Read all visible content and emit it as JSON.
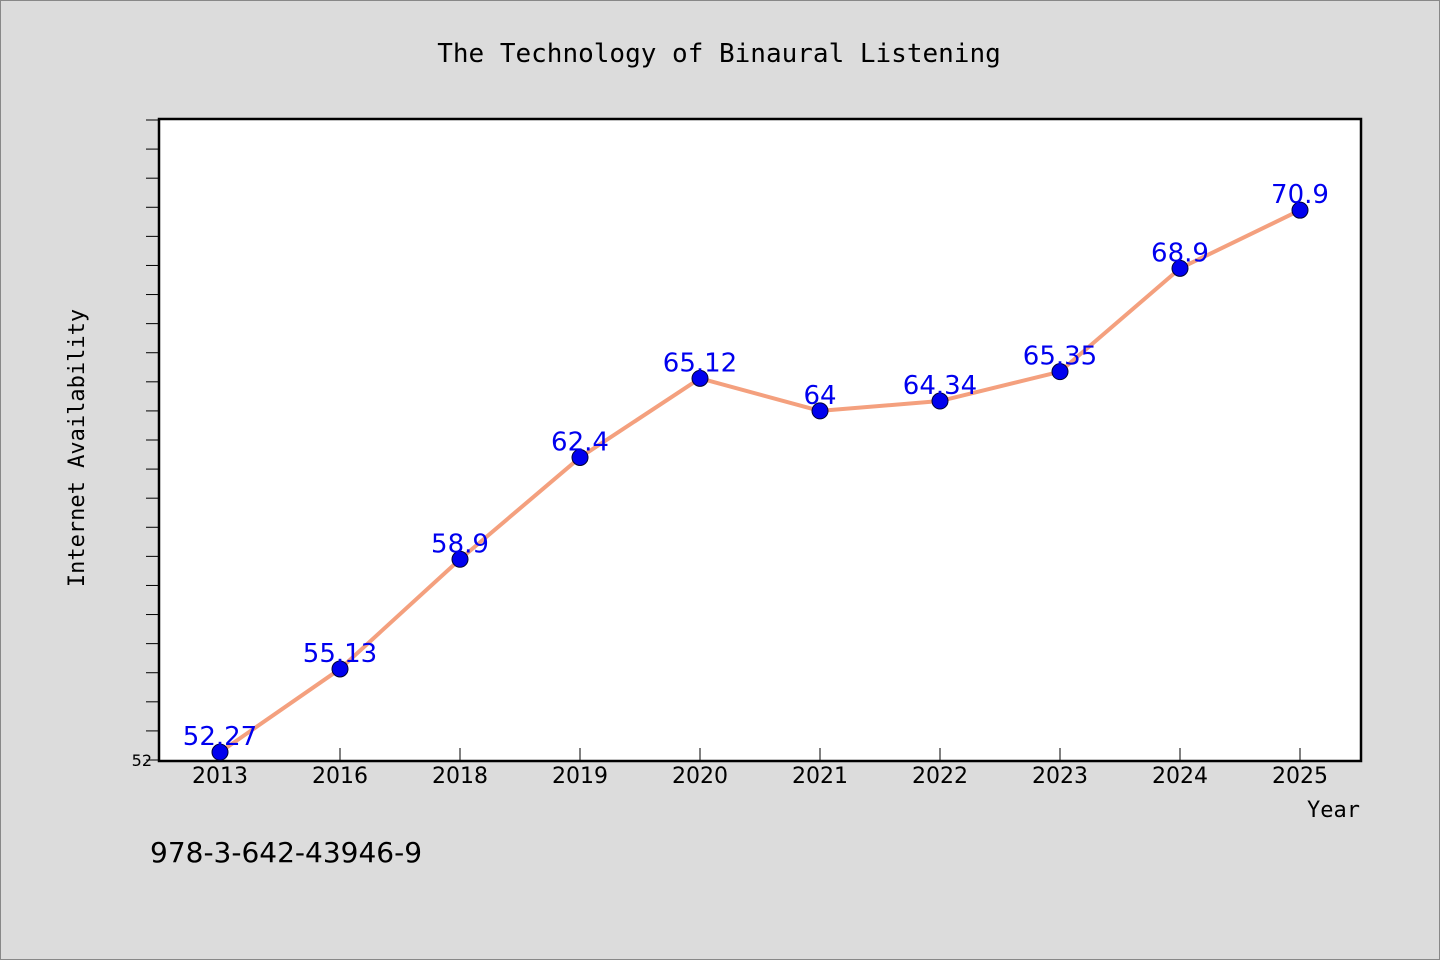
{
  "chart_data": {
    "type": "line",
    "title": "The Technology of Binaural Listening",
    "xlabel": "Year",
    "ylabel": "Internet Availability",
    "categories": [
      "2013",
      "2016",
      "2018",
      "2019",
      "2020",
      "2021",
      "2022",
      "2023",
      "2024",
      "2025"
    ],
    "series": [
      {
        "values": [
          52.27,
          55.13,
          58.9,
          62.4,
          65.12,
          64,
          64.34,
          65.35,
          68.9,
          70.9
        ],
        "labels": [
          "52.27",
          "55.13",
          "58.9",
          "62.4",
          "65.12",
          "64",
          "64.34",
          "65.35",
          "68.9",
          "70.9"
        ],
        "line_color": "#f4a07e",
        "marker_color": "#0000ee"
      }
    ],
    "ylim": [
      52,
      74
    ],
    "ytick_labels": [
      "52"
    ],
    "grid": false,
    "legend": "none"
  },
  "footer_text": "978-3-642-43946-9",
  "colors": {
    "background": "#dcdcdc",
    "plot_background": "#ffffff",
    "label_color": "#0000ee"
  }
}
